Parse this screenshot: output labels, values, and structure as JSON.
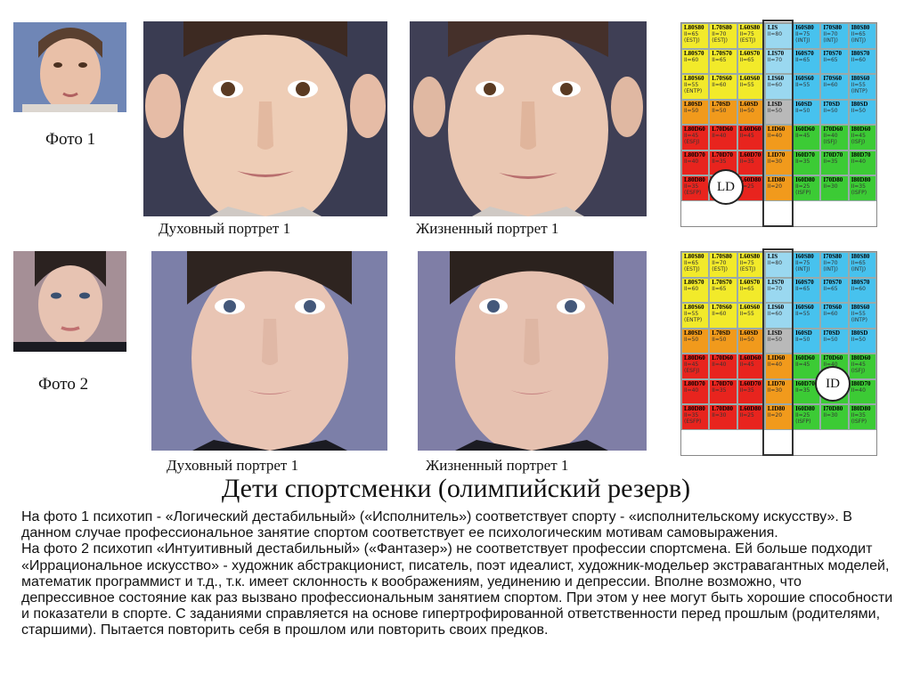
{
  "photos": {
    "photo1_label": "Фото 1",
    "photo2_label": "Фото 2",
    "row1_spiritual_caption": "Духовный портрет 1",
    "row1_life_caption": "Жизненный портрет 1",
    "row2_spiritual_caption": "Духовный портрет 1",
    "row2_life_caption": "Жизненный портрет 1"
  },
  "grid1": {
    "badge": "LD",
    "rows": [
      [
        {
          "t": "L80S80",
          "s": "II=65",
          "c": "(ESTJ)"
        },
        {
          "t": "L70S80",
          "s": "II=70",
          "c": "(ESTJ)"
        },
        {
          "t": "L60S80",
          "s": "II=75",
          "c": "(ESTJ)"
        },
        {
          "t": "LIS",
          "s": "II=80",
          "c": ""
        },
        {
          "t": "I60S80",
          "s": "II=75",
          "c": "(INTJ)"
        },
        {
          "t": "I70S80",
          "s": "II=70",
          "c": "(INTJ)"
        },
        {
          "t": "I80S80",
          "s": "II=65",
          "c": "(INTJ)"
        }
      ],
      [
        {
          "t": "L80S70",
          "s": "II=60",
          "c": ""
        },
        {
          "t": "L70S70",
          "s": "II=65",
          "c": ""
        },
        {
          "t": "L60S70",
          "s": "II=65",
          "c": ""
        },
        {
          "t": "LIS70",
          "s": "II=70",
          "c": ""
        },
        {
          "t": "I60S70",
          "s": "II=65",
          "c": ""
        },
        {
          "t": "I70S70",
          "s": "II=65",
          "c": ""
        },
        {
          "t": "I80S70",
          "s": "II=60",
          "c": ""
        }
      ],
      [
        {
          "t": "L80S60",
          "s": "II=55",
          "c": "(ENTP)"
        },
        {
          "t": "L70S60",
          "s": "II=60",
          "c": ""
        },
        {
          "t": "L60S60",
          "s": "II=55",
          "c": ""
        },
        {
          "t": "LIS60",
          "s": "II=60",
          "c": ""
        },
        {
          "t": "I60S60",
          "s": "II=55",
          "c": ""
        },
        {
          "t": "I70S60",
          "s": "II=60",
          "c": ""
        },
        {
          "t": "I80S60",
          "s": "II=55",
          "c": "(INTP)"
        }
      ],
      [
        {
          "t": "L80SD",
          "s": "II=50",
          "c": ""
        },
        {
          "t": "L70SD",
          "s": "II=50",
          "c": ""
        },
        {
          "t": "L60SD",
          "s": "II=50",
          "c": ""
        },
        {
          "t": "LISD",
          "s": "II=50",
          "c": ""
        },
        {
          "t": "I60SD",
          "s": "II=50",
          "c": ""
        },
        {
          "t": "I70SD",
          "s": "II=50",
          "c": ""
        },
        {
          "t": "I80SD",
          "s": "II=50",
          "c": ""
        }
      ],
      [
        {
          "t": "L80D60",
          "s": "II=45",
          "c": "(ESFJ)"
        },
        {
          "t": "L70D60",
          "s": "II=40",
          "c": ""
        },
        {
          "t": "L60D60",
          "s": "II=45",
          "c": ""
        },
        {
          "t": "LID60",
          "s": "II=40",
          "c": ""
        },
        {
          "t": "I60D60",
          "s": "II=45",
          "c": ""
        },
        {
          "t": "I70D60",
          "s": "II=40",
          "c": "(ISFJ)"
        },
        {
          "t": "I80D60",
          "s": "II=45",
          "c": "(ISFJ)"
        }
      ],
      [
        {
          "t": "L80D70",
          "s": "II=40",
          "c": ""
        },
        {
          "t": "L70D70",
          "s": "II=35",
          "c": ""
        },
        {
          "t": "L60D70",
          "s": "II=35",
          "c": ""
        },
        {
          "t": "LID70",
          "s": "II=30",
          "c": ""
        },
        {
          "t": "I60D70",
          "s": "II=35",
          "c": ""
        },
        {
          "t": "I70D70",
          "s": "II=35",
          "c": ""
        },
        {
          "t": "I80D70",
          "s": "II=40",
          "c": ""
        }
      ],
      [
        {
          "t": "L80D80",
          "s": "II=35",
          "c": "(ESFP)"
        },
        {
          "t": "L70D80",
          "s": "II=30",
          "c": ""
        },
        {
          "t": "L60D80",
          "s": "II=25",
          "c": ""
        },
        {
          "t": "LID80",
          "s": "II=20",
          "c": ""
        },
        {
          "t": "I60D80",
          "s": "II=25",
          "c": "(ISFP)"
        },
        {
          "t": "I70D80",
          "s": "II=30",
          "c": ""
        },
        {
          "t": "I80D80",
          "s": "II=35",
          "c": "(ISFP)"
        }
      ]
    ]
  },
  "grid2": {
    "badge": "ID",
    "rows": [
      [
        {
          "t": "L80S80",
          "s": "II=65",
          "c": "(ESTJ)"
        },
        {
          "t": "L70S80",
          "s": "II=70",
          "c": "(ESTJ)"
        },
        {
          "t": "L60S80",
          "s": "II=75",
          "c": "(ESTJ)"
        },
        {
          "t": "LIS",
          "s": "II=80",
          "c": ""
        },
        {
          "t": "I60S80",
          "s": "II=75",
          "c": "(INTJ)"
        },
        {
          "t": "I70S80",
          "s": "II=70",
          "c": "(INTJ)"
        },
        {
          "t": "I80S80",
          "s": "II=65",
          "c": "(INTJ)"
        }
      ],
      [
        {
          "t": "L80S70",
          "s": "II=60",
          "c": ""
        },
        {
          "t": "L70S70",
          "s": "II=65",
          "c": ""
        },
        {
          "t": "L60S70",
          "s": "II=65",
          "c": ""
        },
        {
          "t": "LIS70",
          "s": "II=70",
          "c": ""
        },
        {
          "t": "I60S70",
          "s": "II=65",
          "c": ""
        },
        {
          "t": "I70S70",
          "s": "II=65",
          "c": ""
        },
        {
          "t": "I80S70",
          "s": "II=60",
          "c": ""
        }
      ],
      [
        {
          "t": "L80S60",
          "s": "II=55",
          "c": "(ENTP)"
        },
        {
          "t": "L70S60",
          "s": "II=60",
          "c": ""
        },
        {
          "t": "L60S60",
          "s": "II=55",
          "c": ""
        },
        {
          "t": "LIS60",
          "s": "II=60",
          "c": ""
        },
        {
          "t": "I60S60",
          "s": "II=55",
          "c": ""
        },
        {
          "t": "I70S60",
          "s": "II=60",
          "c": ""
        },
        {
          "t": "I80S60",
          "s": "II=55",
          "c": "(INTP)"
        }
      ],
      [
        {
          "t": "L80SD",
          "s": "II=50",
          "c": ""
        },
        {
          "t": "L70SD",
          "s": "II=50",
          "c": ""
        },
        {
          "t": "L60SD",
          "s": "II=50",
          "c": ""
        },
        {
          "t": "LISD",
          "s": "II=50",
          "c": ""
        },
        {
          "t": "I60SD",
          "s": "II=50",
          "c": ""
        },
        {
          "t": "I70SD",
          "s": "II=50",
          "c": ""
        },
        {
          "t": "I80SD",
          "s": "II=50",
          "c": ""
        }
      ],
      [
        {
          "t": "L80D60",
          "s": "II=45",
          "c": "(ESFJ)"
        },
        {
          "t": "L70D60",
          "s": "II=40",
          "c": ""
        },
        {
          "t": "L60D60",
          "s": "II=45",
          "c": ""
        },
        {
          "t": "LID60",
          "s": "II=40",
          "c": ""
        },
        {
          "t": "I60D60",
          "s": "II=45",
          "c": ""
        },
        {
          "t": "I70D60",
          "s": "II=40",
          "c": "(ISFJ)"
        },
        {
          "t": "I80D60",
          "s": "II=45",
          "c": "(ISFJ)"
        }
      ],
      [
        {
          "t": "L80D70",
          "s": "II=40",
          "c": ""
        },
        {
          "t": "L70D70",
          "s": "II=35",
          "c": ""
        },
        {
          "t": "L60D70",
          "s": "II=35",
          "c": ""
        },
        {
          "t": "LID70",
          "s": "II=30",
          "c": ""
        },
        {
          "t": "I60D70",
          "s": "II=35",
          "c": ""
        },
        {
          "t": "I70D70",
          "s": "II=35",
          "c": ""
        },
        {
          "t": "I80D70",
          "s": "II=40",
          "c": ""
        }
      ],
      [
        {
          "t": "L80D80",
          "s": "II=35",
          "c": "(ESFP)"
        },
        {
          "t": "L70D80",
          "s": "II=30",
          "c": ""
        },
        {
          "t": "L60D80",
          "s": "II=25",
          "c": ""
        },
        {
          "t": "LID80",
          "s": "II=20",
          "c": ""
        },
        {
          "t": "I60D80",
          "s": "II=25",
          "c": "(ISFP)"
        },
        {
          "t": "I70D80",
          "s": "II=30",
          "c": ""
        },
        {
          "t": "I80D80",
          "s": "II=35",
          "c": "(ISFP)"
        }
      ]
    ]
  },
  "title": "Дети спортсменки (олимпийский резерв)",
  "paragraphs": [
    "На фото 1 психотип - «Логический дестабильный» («Исполнитель») соответствует спорту - «исполнительскому искусству». В данном случае профессиональное занятие спортом соответствует ее психологическим мотивам самовыражения.",
    "На фото 2 психотип «Интуитивный дестабильный» («Фантазер») не соответствует профессии спортсмена. Ей больше подходит «Иррациональное искусство» - художник абстракционист, писатель, поэт идеалист, художник-модельер экстравагантных моделей, математик программист и т.д., т.к. имеет склонность к воображениям, уединению и депрессии. Вполне возможно, что депрессивное состояние как раз  вызвано профессиональным занятием спортом. При этом у нее могут быть хорошие способности и показатели в спорте.  С заданиями справляется на основе гипертрофированной ответственности перед прошлым (родителями, старшими). Пытается повторить себя в прошлом или повторить своих предков."
  ],
  "colors": {
    "yellow": "#f2ea2a",
    "blue": "#47c2ee",
    "gray": "#b9b9b9",
    "red": "#e8241e",
    "orange": "#f19a1c",
    "green": "#3ccb35"
  }
}
